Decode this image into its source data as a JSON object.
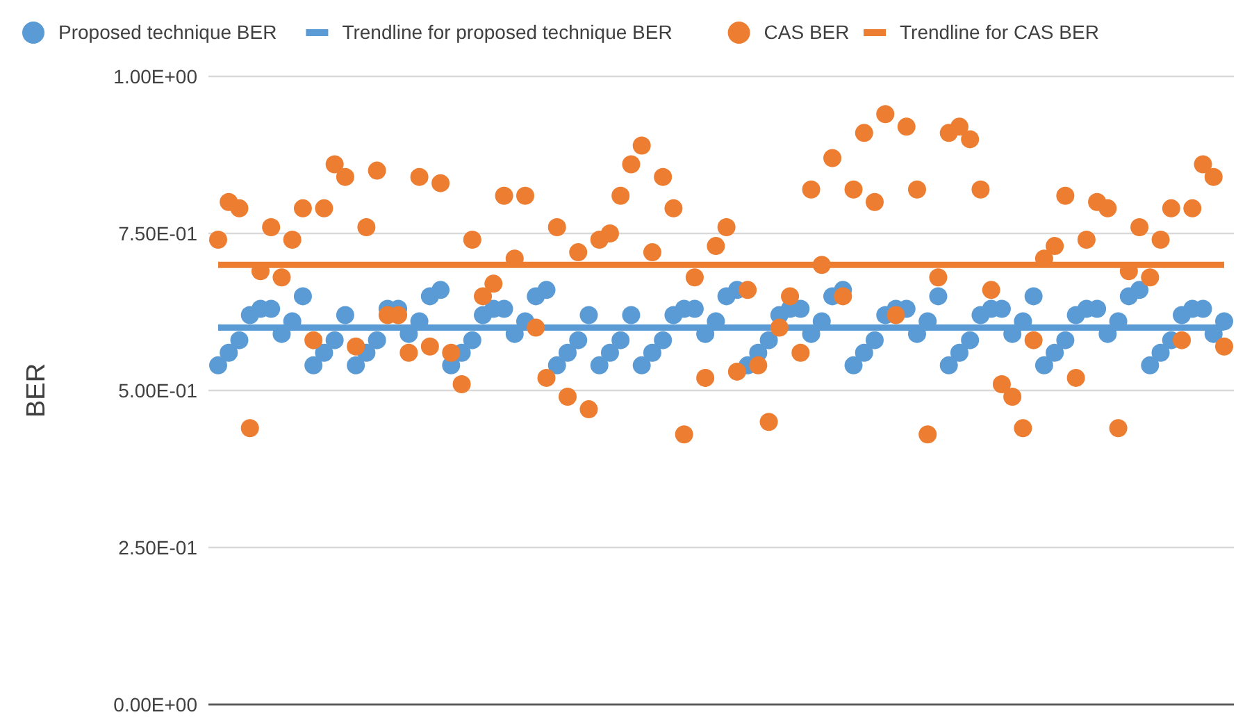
{
  "chart_data": {
    "type": "scatter",
    "ylabel": "BER",
    "categories": [
      null,
      null,
      null,
      null,
      null,
      null,
      null,
      null,
      null,
      null,
      null,
      null,
      null,
      null,
      null,
      null,
      null,
      null,
      null,
      null,
      null,
      null,
      null,
      null,
      null,
      null,
      null,
      null,
      null,
      null,
      null,
      null,
      null,
      null,
      null,
      null,
      null,
      null,
      null,
      null,
      null,
      null,
      null,
      null,
      null,
      null,
      null,
      null,
      null,
      null,
      null,
      null,
      null,
      null,
      null,
      null,
      null,
      null,
      null,
      null,
      null,
      null,
      null,
      null,
      null,
      null,
      null,
      null,
      null,
      null,
      null,
      null,
      null,
      null,
      null,
      null,
      null,
      null,
      null,
      null,
      null,
      null,
      null,
      null,
      null,
      null,
      null,
      null,
      null,
      null,
      null,
      null,
      null,
      null,
      null,
      null
    ],
    "ylim": [
      0,
      1
    ],
    "yticks": [
      {
        "value": 0,
        "label": "0.00E+00"
      },
      {
        "value": 0.25,
        "label": "2.50E-01"
      },
      {
        "value": 0.5,
        "label": "5.00E-01"
      },
      {
        "value": 0.75,
        "label": "7.50E-01"
      },
      {
        "value": 1,
        "label": "1.00E+00"
      }
    ],
    "grid": "y",
    "legend": "top",
    "marker": "circle",
    "series": [
      {
        "name": "Proposed technique BER",
        "color": "#5b9bd5",
        "values": [
          0.54,
          0.56,
          0.58,
          0.62,
          0.63,
          0.63,
          0.59,
          0.61,
          0.65,
          0.54,
          0.56,
          0.58,
          0.62,
          0.54,
          0.56,
          0.58,
          0.63,
          0.63,
          0.59,
          0.61,
          0.65,
          0.66,
          0.54,
          0.56,
          0.58,
          0.62,
          0.63,
          0.63,
          0.59,
          0.61,
          0.65,
          0.66,
          0.54,
          0.56,
          0.58,
          0.62,
          0.54,
          0.56,
          0.58,
          0.62,
          0.54,
          0.56,
          0.58,
          0.62,
          0.63,
          0.63,
          0.59,
          0.61,
          0.65,
          0.66,
          0.54,
          0.56,
          0.58,
          0.62,
          0.63,
          0.63,
          0.59,
          0.61,
          0.65,
          0.66,
          0.54,
          0.56,
          0.58,
          0.62,
          0.63,
          0.63,
          0.59,
          0.61,
          0.65,
          0.54,
          0.56,
          0.58,
          0.62,
          0.63,
          0.63,
          0.59,
          0.61,
          0.65,
          0.54,
          0.56,
          0.58,
          0.62,
          0.63,
          0.63,
          0.59,
          0.61,
          0.65,
          0.66,
          0.54,
          0.56,
          0.58,
          0.62,
          0.63,
          0.63,
          0.59,
          0.61
        ]
      },
      {
        "name": "Trendline for proposed technique BER",
        "type": "line",
        "marker": "none",
        "color": "#5b9bd5",
        "values": [
          0.6,
          0.6,
          0.6,
          0.6,
          0.6,
          0.6,
          0.6,
          0.6,
          0.6,
          0.6,
          0.6,
          0.6,
          0.6,
          0.6,
          0.6,
          0.6,
          0.6,
          0.6,
          0.6,
          0.6,
          0.6,
          0.6,
          0.6,
          0.6,
          0.6,
          0.6,
          0.6,
          0.6,
          0.6,
          0.6,
          0.6,
          0.6,
          0.6,
          0.6,
          0.6,
          0.6,
          0.6,
          0.6,
          0.6,
          0.6,
          0.6,
          0.6,
          0.6,
          0.6,
          0.6,
          0.6,
          0.6,
          0.6,
          0.6,
          0.6,
          0.6,
          0.6,
          0.6,
          0.6,
          0.6,
          0.6,
          0.6,
          0.6,
          0.6,
          0.6,
          0.6,
          0.6,
          0.6,
          0.6,
          0.6,
          0.6,
          0.6,
          0.6,
          0.6,
          0.6,
          0.6,
          0.6,
          0.6,
          0.6,
          0.6,
          0.6,
          0.6,
          0.6,
          0.6,
          0.6,
          0.6,
          0.6,
          0.6,
          0.6,
          0.6,
          0.6,
          0.6,
          0.6,
          0.6,
          0.6,
          0.6,
          0.6,
          0.6,
          0.6,
          0.6,
          0.6
        ]
      },
      {
        "name": "CAS BER",
        "color": "#ed7d31",
        "values": [
          0.74,
          0.8,
          0.79,
          0.44,
          0.69,
          0.76,
          0.68,
          0.74,
          0.79,
          0.58,
          0.79,
          0.86,
          0.84,
          0.57,
          0.76,
          0.85,
          0.62,
          0.62,
          0.56,
          0.84,
          0.57,
          0.83,
          0.56,
          0.51,
          0.74,
          0.65,
          0.67,
          0.81,
          0.71,
          0.81,
          0.6,
          0.52,
          0.76,
          0.49,
          0.72,
          0.47,
          0.74,
          0.75,
          0.81,
          0.86,
          0.89,
          0.72,
          0.84,
          0.79,
          0.43,
          0.68,
          0.52,
          0.73,
          0.76,
          0.53,
          0.66,
          0.54,
          0.45,
          0.6,
          0.65,
          0.56,
          0.82,
          0.7,
          0.87,
          0.65,
          0.82,
          0.91,
          0.8,
          0.94,
          0.62,
          0.92,
          0.82,
          0.43,
          0.68,
          0.91,
          0.92,
          0.9,
          0.82,
          0.66,
          0.51,
          0.49,
          0.44,
          0.58,
          0.71,
          0.73,
          0.81,
          0.52,
          0.74,
          0.8,
          0.79,
          0.44,
          0.69,
          0.76,
          0.68,
          0.74,
          0.79,
          0.58,
          0.79,
          0.86,
          0.84,
          0.57
        ]
      },
      {
        "name": "Trendline for CAS BER",
        "type": "line",
        "marker": "none",
        "color": "#ed7d31",
        "values": [
          0.7,
          0.7,
          0.7,
          0.7,
          0.7,
          0.7,
          0.7,
          0.7,
          0.7,
          0.7,
          0.7,
          0.7,
          0.7,
          0.7,
          0.7,
          0.7,
          0.7,
          0.7,
          0.7,
          0.7,
          0.7,
          0.7,
          0.7,
          0.7,
          0.7,
          0.7,
          0.7,
          0.7,
          0.7,
          0.7,
          0.7,
          0.7,
          0.7,
          0.7,
          0.7,
          0.7,
          0.7,
          0.7,
          0.7,
          0.7,
          0.7,
          0.7,
          0.7,
          0.7,
          0.7,
          0.7,
          0.7,
          0.7,
          0.7,
          0.7,
          0.7,
          0.7,
          0.7,
          0.7,
          0.7,
          0.7,
          0.7,
          0.7,
          0.7,
          0.7,
          0.7,
          0.7,
          0.7,
          0.7,
          0.7,
          0.7,
          0.7,
          0.7,
          0.7,
          0.7,
          0.7,
          0.7,
          0.7,
          0.7,
          0.7,
          0.7,
          0.7,
          0.7,
          0.7,
          0.7,
          0.7,
          0.7,
          0.7,
          0.7,
          0.7,
          0.7,
          0.7,
          0.7,
          0.7,
          0.7,
          0.7,
          0.7,
          0.7,
          0.7,
          0.7,
          0.7
        ]
      }
    ]
  }
}
